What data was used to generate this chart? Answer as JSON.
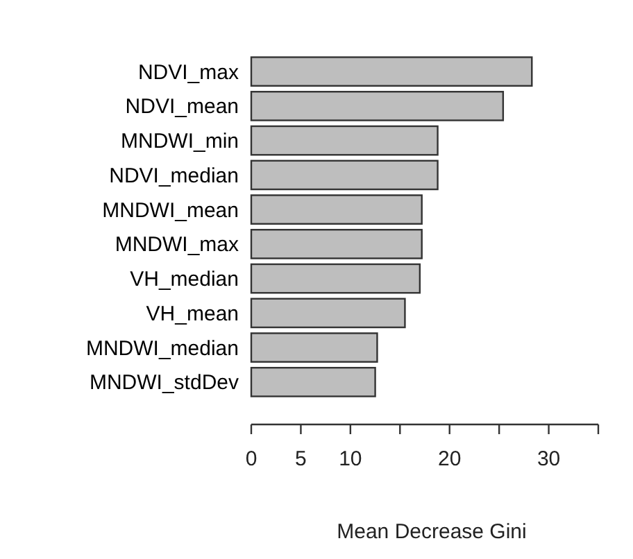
{
  "chart_data": {
    "type": "bar",
    "orientation": "horizontal",
    "xlabel": "Mean Decrease Gini",
    "categories": [
      "NDVI_max",
      "NDVI_mean",
      "MNDWI_min",
      "NDVI_median",
      "MNDWI_mean",
      "MNDWI_max",
      "VH_median",
      "VH_mean",
      "MNDWI_median",
      "MNDWI_stdDev"
    ],
    "values": [
      28.3,
      25.4,
      18.8,
      18.8,
      17.2,
      17.2,
      17.0,
      15.5,
      12.7,
      12.5
    ],
    "color": "#bebebe",
    "xlim": [
      0,
      35
    ],
    "xticks": [
      0,
      5,
      10,
      {
        "value": 15,
        "label": null
      },
      20,
      {
        "value": 25,
        "label": null
      },
      30,
      {
        "value": 35,
        "label": null
      }
    ],
    "grid": false
  }
}
